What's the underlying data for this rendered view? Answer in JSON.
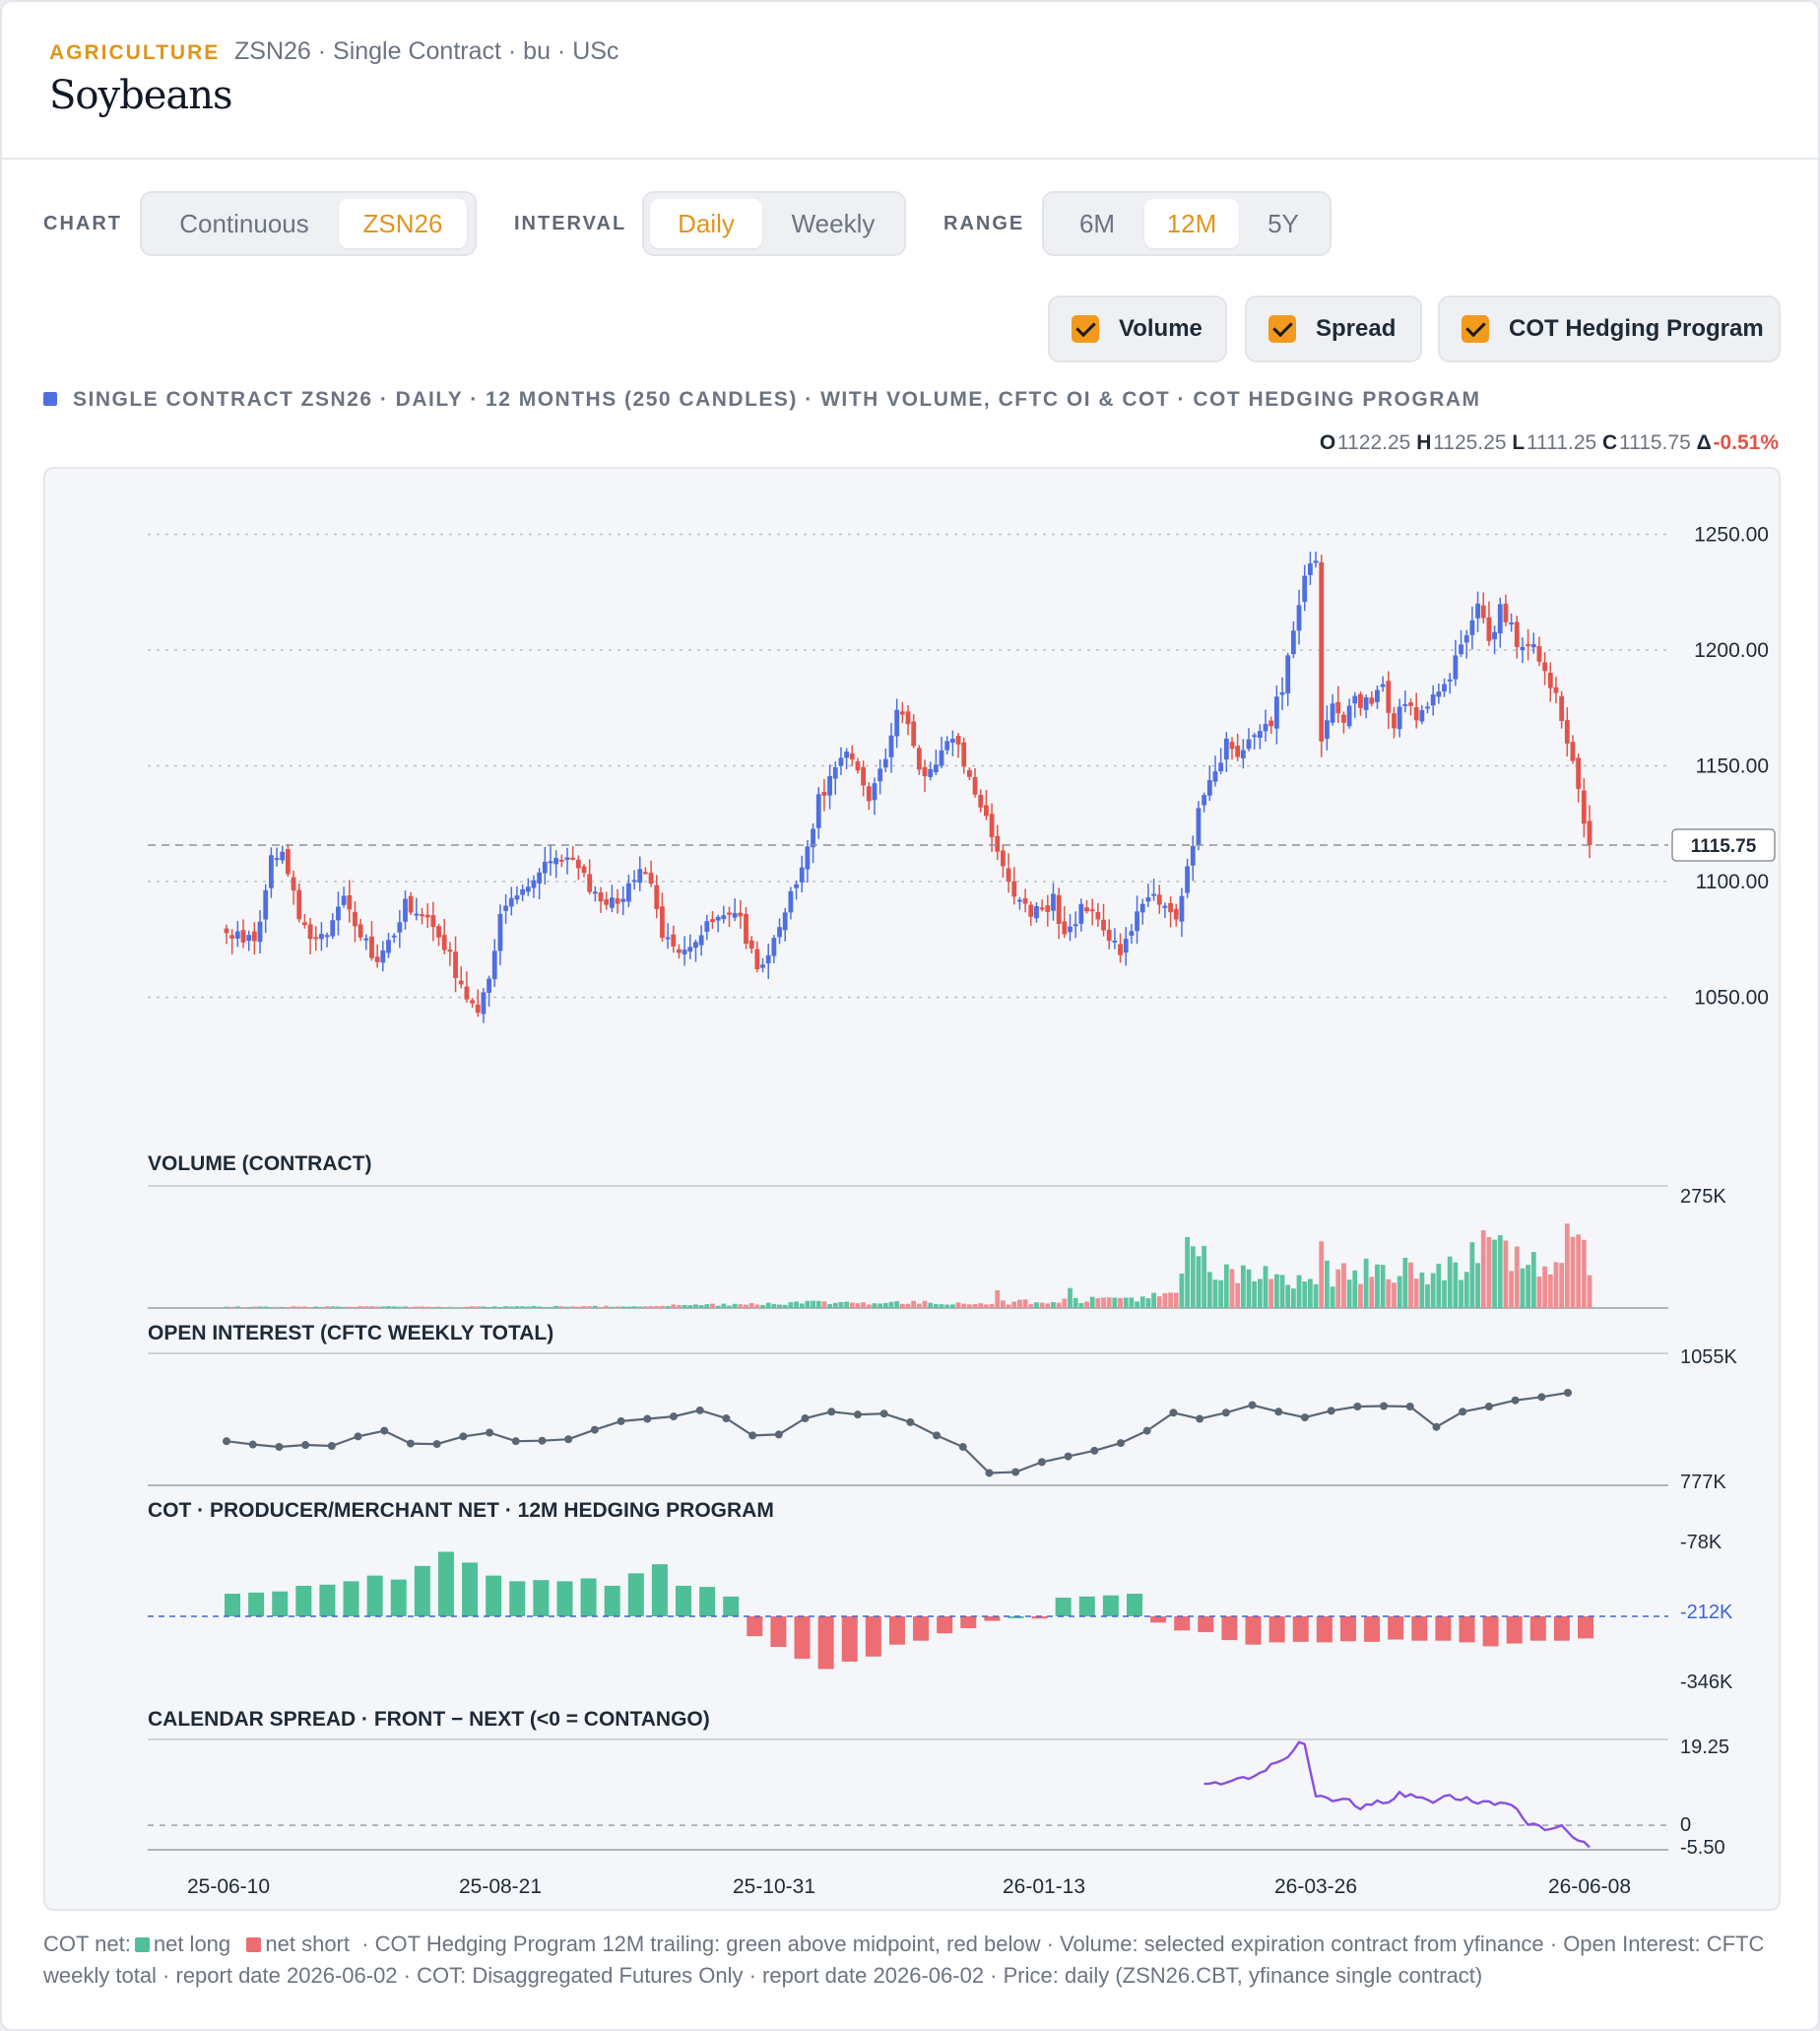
{
  "header": {
    "category": "AGRICULTURE",
    "contract_info": "ZSN26 · Single Contract · bu · USc",
    "title": "Soybeans"
  },
  "controls": {
    "chart_label": "CHART",
    "chart_options": [
      "Continuous",
      "ZSN26"
    ],
    "chart_selected": "ZSN26",
    "interval_label": "INTERVAL",
    "interval_options": [
      "Daily",
      "Weekly"
    ],
    "interval_selected": "Daily",
    "range_label": "RANGE",
    "range_options": [
      "6M",
      "12M",
      "5Y"
    ],
    "range_selected": "12M",
    "toggles": [
      {
        "label": "Volume",
        "checked": true
      },
      {
        "label": "Spread",
        "checked": true
      },
      {
        "label": "COT Hedging Program",
        "checked": true
      }
    ]
  },
  "caption": "SINGLE CONTRACT ZSN26 · DAILY · 12 MONTHS (250 CANDLES) · WITH VOLUME, CFTC OI & COT · COT HEDGING PROGRAM",
  "ohlc": {
    "o_label": "O",
    "o": "1122.25",
    "h_label": "H",
    "h": "1125.25",
    "l_label": "L",
    "l": "1111.25",
    "c_label": "C",
    "c": "1115.75",
    "d_label": "Δ",
    "change": "-0.51%"
  },
  "colors": {
    "up": "#4f6fe0",
    "down": "#e2534a",
    "vol_up": "#5cc4a0",
    "vol_down": "#ee8f93",
    "oi_line": "#5b6675",
    "cot_long": "#4fbf97",
    "cot_short": "#ec6d72",
    "spread": "#8a4fe0",
    "accent": "#e0951b"
  },
  "footer": {
    "cot_net": "COT net:",
    "net_long": "net long",
    "net_short": "net short",
    "rest": "· COT Hedging Program 12M trailing: green above midpoint, red below · Volume: selected expiration contract from yfinance · Open Interest: CFTC weekly total · report date 2026-06-02 · COT: Disaggregated Futures Only · report date 2026-06-02 · Price: daily (ZSN26.CBT, yfinance single contract)"
  },
  "chart_data": {
    "type": "candlestick",
    "x_tick_labels": [
      "25-06-10",
      "25-08-21",
      "25-10-31",
      "26-01-13",
      "26-03-26",
      "26-06-08"
    ],
    "price": {
      "y_ticks": [
        1250,
        1200,
        1150,
        1100,
        1050
      ],
      "y_tick_labels": [
        "1250.00",
        "1200.00",
        "1150.00",
        "1100.00",
        "1050.00"
      ],
      "ylim": [
        1040,
        1257
      ],
      "last": 1115.75,
      "last_label": "1115.75",
      "close_anchors": [
        [
          0,
          1076
        ],
        [
          5,
          1075
        ],
        [
          8,
          1108
        ],
        [
          10,
          1112
        ],
        [
          12,
          1093
        ],
        [
          15,
          1072
        ],
        [
          18,
          1080
        ],
        [
          21,
          1091
        ],
        [
          24,
          1076
        ],
        [
          27,
          1064
        ],
        [
          30,
          1076
        ],
        [
          32,
          1091
        ],
        [
          35,
          1087
        ],
        [
          40,
          1068
        ],
        [
          42,
          1055
        ],
        [
          45,
          1046
        ],
        [
          47,
          1055
        ],
        [
          49,
          1086
        ],
        [
          52,
          1096
        ],
        [
          55,
          1100
        ],
        [
          58,
          1110
        ],
        [
          62,
          1110
        ],
        [
          65,
          1096
        ],
        [
          68,
          1091
        ],
        [
          71,
          1091
        ],
        [
          74,
          1108
        ],
        [
          76,
          1097
        ],
        [
          78,
          1075
        ],
        [
          82,
          1068
        ],
        [
          86,
          1082
        ],
        [
          89,
          1088
        ],
        [
          92,
          1082
        ],
        [
          95,
          1062
        ],
        [
          97,
          1068
        ],
        [
          100,
          1090
        ],
        [
          103,
          1108
        ],
        [
          106,
          1135
        ],
        [
          108,
          1144
        ],
        [
          111,
          1156
        ],
        [
          113,
          1150
        ],
        [
          115,
          1138
        ],
        [
          118,
          1150
        ],
        [
          120,
          1172
        ],
        [
          122,
          1168
        ],
        [
          124,
          1145
        ],
        [
          127,
          1150
        ],
        [
          130,
          1165
        ],
        [
          132,
          1151
        ],
        [
          134,
          1137
        ],
        [
          137,
          1122
        ],
        [
          139,
          1110
        ],
        [
          142,
          1090
        ],
        [
          145,
          1086
        ],
        [
          148,
          1092
        ],
        [
          150,
          1078
        ],
        [
          153,
          1087
        ],
        [
          157,
          1082
        ],
        [
          160,
          1067
        ],
        [
          163,
          1086
        ],
        [
          165,
          1095
        ],
        [
          168,
          1088
        ],
        [
          170,
          1082
        ],
        [
          172,
          1106
        ],
        [
          174,
          1130
        ],
        [
          176,
          1142
        ],
        [
          179,
          1160
        ],
        [
          182,
          1155
        ],
        [
          184,
          1165
        ],
        [
          187,
          1170
        ],
        [
          189,
          1184
        ],
        [
          191,
          1205
        ],
        [
          193,
          1235
        ],
        [
          195,
          1242
        ],
        [
          196,
          1162
        ],
        [
          198,
          1180
        ],
        [
          200,
          1172
        ],
        [
          202,
          1178
        ],
        [
          205,
          1176
        ],
        [
          207,
          1184
        ],
        [
          209,
          1165
        ],
        [
          211,
          1180
        ],
        [
          213,
          1170
        ],
        [
          215,
          1178
        ],
        [
          218,
          1183
        ],
        [
          220,
          1198
        ],
        [
          222,
          1206
        ],
        [
          224,
          1222
        ],
        [
          226,
          1204
        ],
        [
          228,
          1218
        ],
        [
          230,
          1209
        ],
        [
          232,
          1198
        ],
        [
          234,
          1202
        ],
        [
          236,
          1188
        ],
        [
          238,
          1178
        ],
        [
          240,
          1160
        ],
        [
          242,
          1138
        ],
        [
          244,
          1115.75
        ]
      ]
    },
    "volume": {
      "title": "VOLUME (CONTRACT)",
      "y_tick_label": "275K",
      "ylim": [
        0,
        275000
      ],
      "anchors": [
        [
          0,
          3000
        ],
        [
          70,
          4000
        ],
        [
          85,
          8000
        ],
        [
          105,
          14000
        ],
        [
          135,
          12000
        ],
        [
          150,
          18000
        ],
        [
          170,
          30000
        ],
        [
          172,
          140000
        ],
        [
          175,
          80000
        ],
        [
          185,
          75000
        ],
        [
          200,
          85000
        ],
        [
          215,
          95000
        ],
        [
          228,
          130000
        ],
        [
          236,
          110000
        ],
        [
          246,
          140000
        ]
      ],
      "spikes": [
        [
          138,
          40000
        ],
        [
          151,
          45000
        ],
        [
          172,
          160000
        ],
        [
          175,
          140000
        ],
        [
          196,
          150000
        ],
        [
          225,
          175000
        ],
        [
          240,
          190000
        ],
        [
          241,
          160000
        ]
      ]
    },
    "open_interest": {
      "title": "OPEN INTEREST (CFTC WEEKLY TOTAL)",
      "y_tick_labels": [
        "1055K",
        "777K"
      ],
      "ylim": [
        777,
        1055
      ],
      "values": [
        870,
        863,
        858,
        862,
        860,
        880,
        892,
        865,
        864,
        880,
        888,
        870,
        871,
        874,
        894,
        912,
        917,
        922,
        935,
        918,
        882,
        884,
        918,
        932,
        926,
        928,
        910,
        882,
        858,
        803,
        805,
        826,
        838,
        850,
        866,
        892,
        930,
        917,
        930,
        946,
        932,
        920,
        934,
        943,
        944,
        943,
        900,
        932,
        943,
        956,
        963,
        972
      ]
    },
    "cot": {
      "title": "COT · PRODUCER/MERCHANT NET · 12M HEDGING PROGRAM",
      "y_tick_labels": [
        "-78K",
        "-212K",
        "-346K"
      ],
      "ylim": [
        -346,
        -78
      ],
      "midpoint": -212,
      "values": [
        -172,
        -170,
        -168,
        -158,
        -156,
        -150,
        -140,
        -147,
        -123,
        -98,
        -117,
        -140,
        -150,
        -148,
        -150,
        -145,
        -158,
        -136,
        -120,
        -158,
        -160,
        -177,
        -247,
        -266,
        -287,
        -305,
        -292,
        -283,
        -262,
        -255,
        -242,
        -233,
        -220,
        -212,
        -216,
        -179,
        -177,
        -175,
        -172,
        -223,
        -237,
        -240,
        -254,
        -262,
        -258,
        -257,
        -258,
        -256,
        -257,
        -253,
        -255,
        -255,
        -258,
        -265,
        -260,
        -255,
        -255,
        -251
      ]
    },
    "spread": {
      "title": "CALENDAR SPREAD · FRONT − NEXT (<0 = CONTANGO)",
      "y_tick_labels": [
        "19.25",
        "0",
        "-5.50"
      ],
      "ylim": [
        -5.5,
        19.25
      ],
      "start_index": 175,
      "anchors": [
        [
          175,
          9.5
        ],
        [
          180,
          9.8
        ],
        [
          185,
          11.5
        ],
        [
          188,
          14.5
        ],
        [
          190,
          15.2
        ],
        [
          192,
          19.0
        ],
        [
          193,
          17.8
        ],
        [
          195,
          6.5
        ],
        [
          198,
          5.8
        ],
        [
          200,
          6.2
        ],
        [
          203,
          3.5
        ],
        [
          205,
          5.0
        ],
        [
          208,
          5.2
        ],
        [
          210,
          7.0
        ],
        [
          213,
          6.2
        ],
        [
          216,
          5.5
        ],
        [
          219,
          6.5
        ],
        [
          222,
          5.8
        ],
        [
          226,
          5.0
        ],
        [
          230,
          4.8
        ],
        [
          233,
          0.2
        ],
        [
          236,
          -0.8
        ],
        [
          239,
          -0.5
        ],
        [
          241,
          -3.2
        ],
        [
          243,
          -3.7
        ],
        [
          244,
          -5.0
        ]
      ]
    }
  }
}
